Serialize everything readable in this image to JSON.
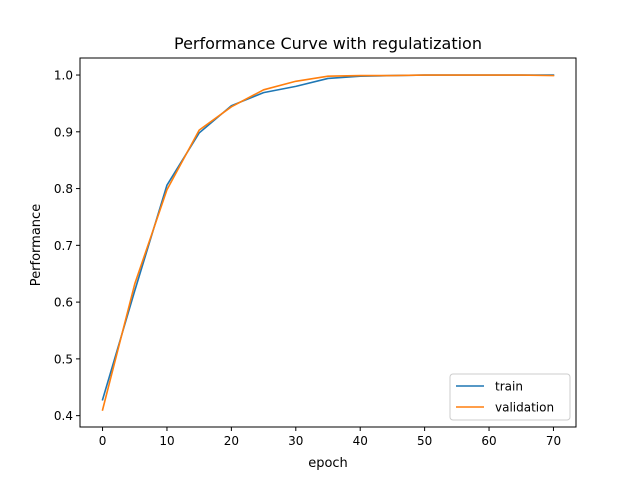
{
  "chart_data": {
    "type": "line",
    "title": "Performance Curve with regulatization",
    "xlabel": "epoch",
    "ylabel": "Performance",
    "xlim": [
      -3.5,
      73.5
    ],
    "ylim": [
      0.38,
      1.03
    ],
    "xticks": [
      0,
      10,
      20,
      30,
      40,
      50,
      60,
      70
    ],
    "yticks": [
      0.4,
      0.5,
      0.6,
      0.7,
      0.8,
      0.9,
      1.0
    ],
    "ytick_labels": [
      "0.4",
      "0.5",
      "0.6",
      "0.7",
      "0.8",
      "0.9",
      "1.0"
    ],
    "x": [
      0,
      5,
      10,
      15,
      20,
      25,
      30,
      35,
      40,
      45,
      50,
      55,
      60,
      65,
      70
    ],
    "series": [
      {
        "name": "train",
        "color": "#1f77b4",
        "values": [
          0.428,
          0.62,
          0.806,
          0.898,
          0.946,
          0.969,
          0.98,
          0.994,
          0.998,
          0.999,
          1.0,
          1.0,
          1.0,
          1.0,
          1.0
        ]
      },
      {
        "name": "validation",
        "color": "#ff7f0e",
        "values": [
          0.41,
          0.632,
          0.798,
          0.903,
          0.944,
          0.974,
          0.989,
          0.998,
          0.999,
          0.999,
          1.0,
          1.0,
          1.0,
          1.0,
          0.999
        ]
      }
    ],
    "grid": false,
    "legend_position": "lower right"
  }
}
